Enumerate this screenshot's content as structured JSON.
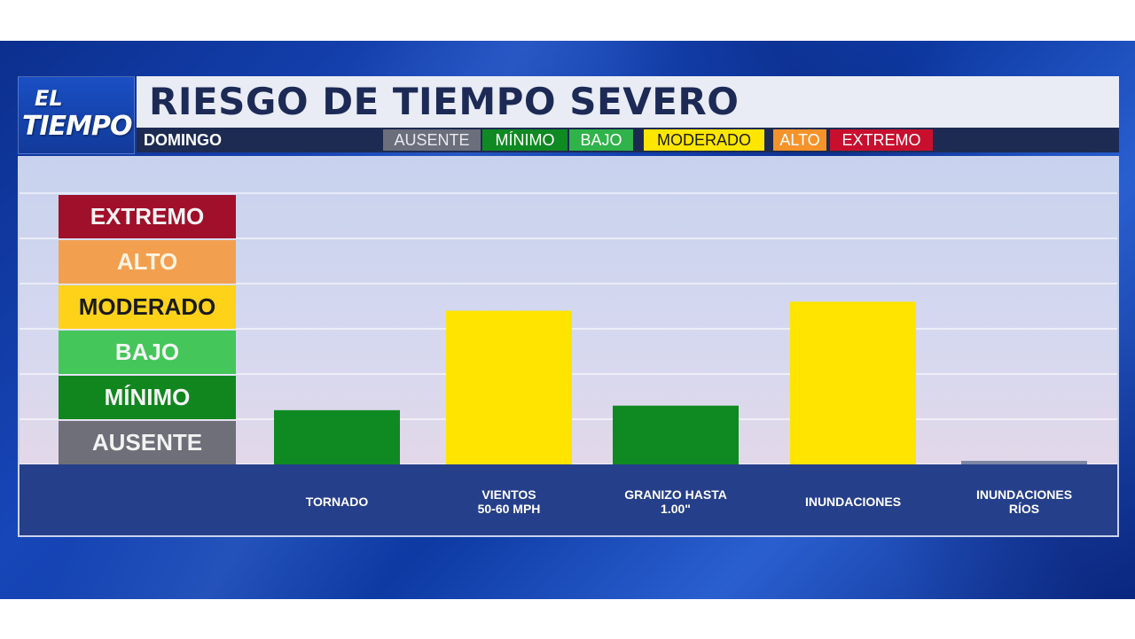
{
  "logo": {
    "line1": "EL",
    "line2": "TIEMPO"
  },
  "header": {
    "title": "RIESGO DE TIEMPO SEVERO",
    "day": "DOMINGO"
  },
  "legend": [
    {
      "label": "AUSENTE",
      "bg": "#6b6f7c",
      "fg": "#e8e8ee"
    },
    {
      "label": "MÍNIMO",
      "bg": "#0f8a22",
      "fg": "#ffffff"
    },
    {
      "label": "BAJO",
      "bg": "#2fb34a",
      "fg": "#ffffff"
    },
    {
      "label": "MODERADO",
      "bg": "#ffe600",
      "fg": "#1a1a1a"
    },
    {
      "label": "ALTO",
      "bg": "#f5932a",
      "fg": "#ffffff"
    },
    {
      "label": "EXTREMO",
      "bg": "#c8102e",
      "fg": "#ffffff"
    }
  ],
  "chart_data": {
    "type": "bar",
    "title": "RIESGO DE TIEMPO SEVERO",
    "subtitle": "DOMINGO",
    "levels": [
      {
        "label": "AUSENTE",
        "color": "#6e6f78",
        "text": "#f2f2f2"
      },
      {
        "label": "MÍNIMO",
        "color": "#11861f",
        "text": "#f4f4f4"
      },
      {
        "label": "BAJO",
        "color": "#45c65a",
        "text": "#f4f4f4"
      },
      {
        "label": "MODERADO",
        "color": "#ffd21a",
        "text": "#1a1a1a"
      },
      {
        "label": "ALTO",
        "color": "#f2a050",
        "text": "#fff3e0"
      },
      {
        "label": "EXTREMO",
        "color": "#a0102a",
        "text": "#f4f4f4"
      }
    ],
    "categories": [
      "TORNADO",
      "VIENTOS\n50-60 MPH",
      "GRANIZO HASTA\n1.00\"",
      "INUNDACIONES",
      "INUNDACIONES\nRÍOS"
    ],
    "values": [
      1.2,
      3.4,
      1.3,
      3.6,
      0.0
    ],
    "bar_colors": [
      "#0f8a22",
      "#ffe400",
      "#0f8a22",
      "#ffe400",
      "#7c86a4"
    ],
    "ylim": [
      0,
      6
    ],
    "grid": true
  }
}
